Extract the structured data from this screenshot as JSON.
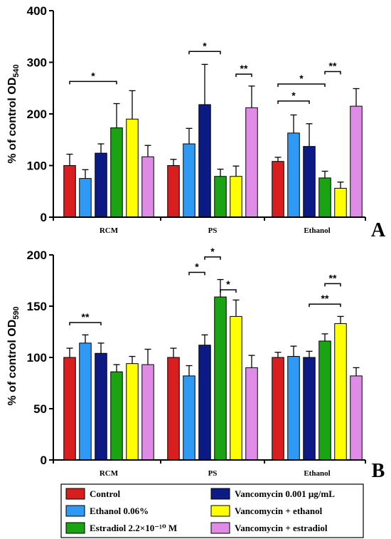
{
  "chart_data": [
    {
      "type": "bar",
      "panel_label": "A",
      "ylabel_main": "% of control OD",
      "ylabel_sub": "540",
      "ylim": [
        0,
        400
      ],
      "yticks": [
        "0",
        "100",
        "200",
        "300",
        "400"
      ],
      "categories": [
        "RCM",
        "PS",
        "Ethanol"
      ],
      "series": [
        {
          "name": "Control",
          "color": "#d81e1e",
          "values": [
            100,
            100,
            108
          ],
          "errors": [
            22,
            12,
            8
          ]
        },
        {
          "name": "Ethanol 0.06%",
          "color": "#2f9af5",
          "values": [
            75,
            142,
            163
          ],
          "errors": [
            17,
            30,
            35
          ]
        },
        {
          "name": "Vancomycin 0.001 μg/mL",
          "color": "#0c1a86",
          "values": [
            124,
            218,
            137
          ],
          "errors": [
            18,
            78,
            44
          ]
        },
        {
          "name": "Estradiol 2.2×10⁻¹⁰ M",
          "color": "#1aa313",
          "values": [
            173,
            79,
            76
          ],
          "errors": [
            47,
            14,
            13
          ]
        },
        {
          "name": "Vancomycin + ethanol",
          "color": "#ffff00",
          "values": [
            190,
            79,
            56
          ],
          "errors": [
            55,
            20,
            12
          ]
        },
        {
          "name": "Vancomycin + estradiol",
          "color": "#e08be8",
          "values": [
            117,
            212,
            215
          ],
          "errors": [
            22,
            42,
            34
          ]
        }
      ],
      "significance": [
        {
          "group": 0,
          "from": 1,
          "to": 4,
          "level": 263,
          "label": "*"
        },
        {
          "group": 1,
          "from": 2,
          "to": 4,
          "level": 321,
          "label": "*"
        },
        {
          "group": 1,
          "from": 5,
          "to": 6,
          "level": 277,
          "label": "**"
        },
        {
          "group": 2,
          "from": 1,
          "to": 3,
          "level": 225,
          "label": "*"
        },
        {
          "group": 2,
          "from": 1,
          "to": 4,
          "level": 258,
          "label": "*"
        },
        {
          "group": 2,
          "from": 4,
          "to": 5,
          "level": 282,
          "label": "**"
        }
      ]
    },
    {
      "type": "bar",
      "panel_label": "B",
      "ylabel_main": "% of control OD",
      "ylabel_sub": "590",
      "ylim": [
        0,
        200
      ],
      "yticks": [
        "0",
        "50",
        "100",
        "150",
        "200"
      ],
      "categories": [
        "RCM",
        "PS",
        "Ethanol"
      ],
      "series": [
        {
          "name": "Control",
          "color": "#d81e1e",
          "values": [
            100,
            100,
            100
          ],
          "errors": [
            9,
            9,
            5
          ]
        },
        {
          "name": "Ethanol 0.06%",
          "color": "#2f9af5",
          "values": [
            114,
            82,
            101
          ],
          "errors": [
            8,
            10,
            10
          ]
        },
        {
          "name": "Vancomycin 0.001 μg/mL",
          "color": "#0c1a86",
          "values": [
            104,
            112,
            100
          ],
          "errors": [
            10,
            10,
            6
          ]
        },
        {
          "name": "Estradiol 2.2×10⁻¹⁰ M",
          "color": "#1aa313",
          "values": [
            86,
            159,
            116
          ],
          "errors": [
            7,
            17,
            7
          ]
        },
        {
          "name": "Vancomycin + ethanol",
          "color": "#ffff00",
          "values": [
            94,
            140,
            133
          ],
          "errors": [
            7,
            16,
            7
          ]
        },
        {
          "name": "Vancomycin + estradiol",
          "color": "#e08be8",
          "values": [
            93,
            90,
            82
          ],
          "errors": [
            15,
            12,
            8
          ]
        }
      ],
      "significance": [
        {
          "group": 0,
          "from": 1,
          "to": 3,
          "level": 134,
          "label": "**"
        },
        {
          "group": 1,
          "from": 2,
          "to": 3,
          "level": 183,
          "label": "*"
        },
        {
          "group": 1,
          "from": 3,
          "to": 4,
          "level": 198,
          "label": "*"
        },
        {
          "group": 1,
          "from": 4,
          "to": 5,
          "level": 166,
          "label": "*"
        },
        {
          "group": 2,
          "from": 3,
          "to": 5,
          "level": 152,
          "label": "**"
        },
        {
          "group": 2,
          "from": 4,
          "to": 5,
          "level": 172,
          "label": "**"
        }
      ]
    }
  ],
  "legend": {
    "items": [
      {
        "label": "Control",
        "color": "#d81e1e"
      },
      {
        "label": "Vancomycin 0.001 μg/mL",
        "color": "#0c1a86"
      },
      {
        "label": "Ethanol 0.06%",
        "color": "#2f9af5"
      },
      {
        "label": "Vancomycin + ethanol",
        "color": "#ffff00"
      },
      {
        "label": "Estradiol 2.2×10⁻¹⁰ M",
        "color": "#1aa313"
      },
      {
        "label": "Vancomycin + estradiol",
        "color": "#e08be8"
      }
    ]
  }
}
